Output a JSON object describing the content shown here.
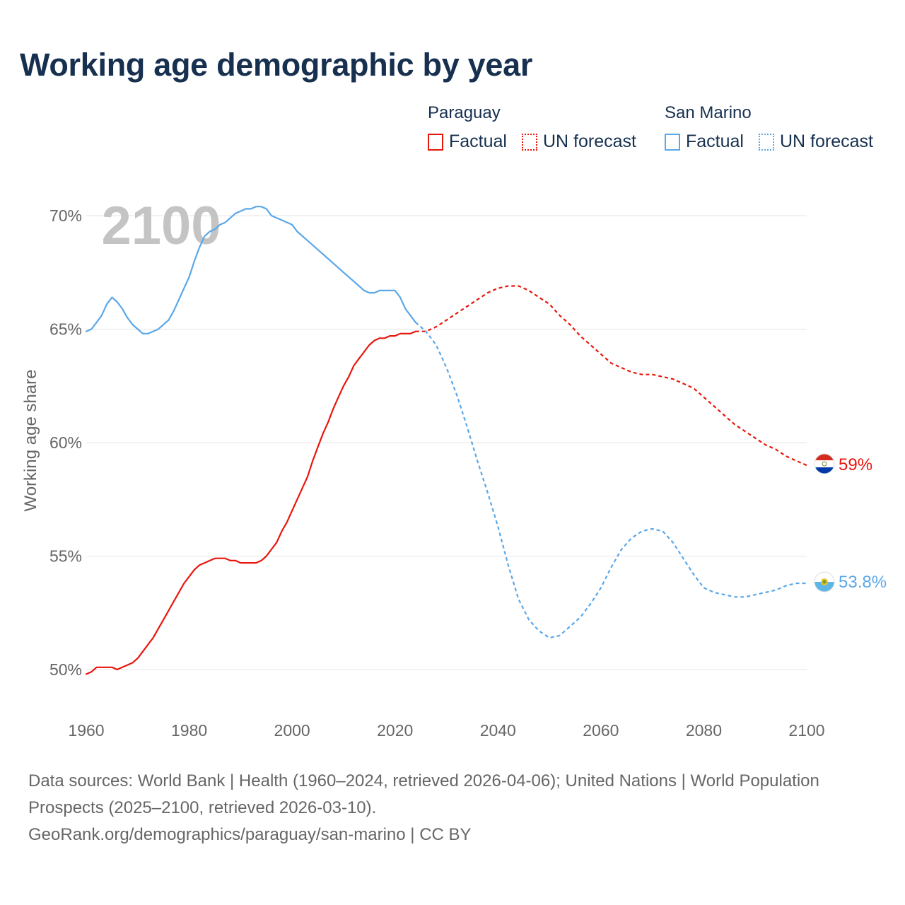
{
  "title": "Working age demographic by year",
  "legend": {
    "groups": [
      {
        "country": "Paraguay",
        "color": "#e8160c",
        "factual_label": "Factual",
        "forecast_label": "UN forecast"
      },
      {
        "country": "San Marino",
        "color": "#5ba7e8",
        "factual_label": "Factual",
        "forecast_label": "UN forecast"
      }
    ]
  },
  "chart_data": {
    "type": "line",
    "title": "Working age demographic by year",
    "year_watermark": "2100",
    "xlabel": "",
    "ylabel": "Working age share",
    "xlim": [
      1960,
      2100
    ],
    "ylim": [
      48.7,
      71.2
    ],
    "x_ticks": [
      1960,
      1980,
      2000,
      2020,
      2040,
      2060,
      2080,
      2100
    ],
    "y_ticks": [
      50,
      55,
      60,
      65,
      70
    ],
    "y_tick_labels": [
      "50%",
      "55%",
      "60%",
      "65%",
      "70%"
    ],
    "grid": "horizontal",
    "factual_range": [
      1960,
      2024
    ],
    "forecast_range": [
      2025,
      2100
    ],
    "series": [
      {
        "name": "Paraguay",
        "color": "#e8160c",
        "end_label": "59%",
        "x": [
          1960,
          1961,
          1962,
          1963,
          1964,
          1965,
          1966,
          1967,
          1968,
          1969,
          1970,
          1971,
          1972,
          1973,
          1974,
          1975,
          1976,
          1977,
          1978,
          1979,
          1980,
          1981,
          1982,
          1983,
          1984,
          1985,
          1986,
          1987,
          1988,
          1989,
          1990,
          1991,
          1992,
          1993,
          1994,
          1995,
          1996,
          1997,
          1998,
          1999,
          2000,
          2001,
          2002,
          2003,
          2004,
          2005,
          2006,
          2007,
          2008,
          2009,
          2010,
          2011,
          2012,
          2013,
          2014,
          2015,
          2016,
          2017,
          2018,
          2019,
          2020,
          2021,
          2022,
          2023,
          2024,
          2025,
          2026,
          2028,
          2030,
          2032,
          2034,
          2036,
          2038,
          2040,
          2042,
          2044,
          2046,
          2048,
          2050,
          2052,
          2054,
          2056,
          2058,
          2060,
          2062,
          2064,
          2066,
          2068,
          2070,
          2072,
          2074,
          2076,
          2078,
          2080,
          2082,
          2084,
          2086,
          2088,
          2090,
          2092,
          2094,
          2096,
          2098,
          2100
        ],
        "values": [
          49.8,
          49.9,
          50.1,
          50.1,
          50.1,
          50.1,
          50.0,
          50.1,
          50.2,
          50.3,
          50.5,
          50.8,
          51.1,
          51.4,
          51.8,
          52.2,
          52.6,
          53.0,
          53.4,
          53.8,
          54.1,
          54.4,
          54.6,
          54.7,
          54.8,
          54.9,
          54.9,
          54.9,
          54.8,
          54.8,
          54.7,
          54.7,
          54.7,
          54.7,
          54.8,
          55.0,
          55.3,
          55.6,
          56.1,
          56.5,
          57.0,
          57.5,
          58.0,
          58.5,
          59.2,
          59.8,
          60.4,
          60.9,
          61.5,
          62.0,
          62.5,
          62.9,
          63.4,
          63.7,
          64.0,
          64.3,
          64.5,
          64.6,
          64.6,
          64.7,
          64.7,
          64.8,
          64.8,
          64.8,
          64.9,
          64.9,
          64.9,
          65.1,
          65.4,
          65.7,
          66.0,
          66.3,
          66.6,
          66.8,
          66.9,
          66.9,
          66.7,
          66.4,
          66.1,
          65.6,
          65.2,
          64.7,
          64.3,
          63.9,
          63.5,
          63.3,
          63.1,
          63.0,
          63.0,
          62.9,
          62.8,
          62.6,
          62.4,
          62.0,
          61.6,
          61.2,
          60.8,
          60.5,
          60.2,
          59.9,
          59.7,
          59.4,
          59.2,
          59.0
        ]
      },
      {
        "name": "San Marino",
        "color": "#5ba7e8",
        "end_label": "53.8%",
        "x": [
          1960,
          1961,
          1962,
          1963,
          1964,
          1965,
          1966,
          1967,
          1968,
          1969,
          1970,
          1971,
          1972,
          1973,
          1974,
          1975,
          1976,
          1977,
          1978,
          1979,
          1980,
          1981,
          1982,
          1983,
          1984,
          1985,
          1986,
          1987,
          1988,
          1989,
          1990,
          1991,
          1992,
          1993,
          1994,
          1995,
          1996,
          1997,
          1998,
          1999,
          2000,
          2001,
          2002,
          2003,
          2004,
          2005,
          2006,
          2007,
          2008,
          2009,
          2010,
          2011,
          2012,
          2013,
          2014,
          2015,
          2016,
          2017,
          2018,
          2019,
          2020,
          2021,
          2022,
          2023,
          2024,
          2025,
          2026,
          2028,
          2030,
          2032,
          2034,
          2036,
          2038,
          2040,
          2042,
          2044,
          2046,
          2048,
          2050,
          2052,
          2054,
          2056,
          2058,
          2060,
          2062,
          2064,
          2066,
          2068,
          2070,
          2072,
          2074,
          2076,
          2078,
          2080,
          2082,
          2084,
          2086,
          2088,
          2090,
          2092,
          2094,
          2096,
          2098,
          2100
        ],
        "values": [
          64.9,
          65.0,
          65.3,
          65.6,
          66.1,
          66.4,
          66.2,
          65.9,
          65.5,
          65.2,
          65.0,
          64.8,
          64.8,
          64.9,
          65.0,
          65.2,
          65.4,
          65.8,
          66.3,
          66.8,
          67.3,
          68.0,
          68.6,
          69.1,
          69.3,
          69.4,
          69.6,
          69.7,
          69.9,
          70.1,
          70.2,
          70.3,
          70.3,
          70.4,
          70.4,
          70.3,
          70.0,
          69.9,
          69.8,
          69.7,
          69.6,
          69.3,
          69.1,
          68.9,
          68.7,
          68.5,
          68.3,
          68.1,
          67.9,
          67.7,
          67.5,
          67.3,
          67.1,
          66.9,
          66.7,
          66.6,
          66.6,
          66.7,
          66.7,
          66.7,
          66.7,
          66.4,
          65.9,
          65.6,
          65.3,
          65.1,
          64.9,
          64.3,
          63.3,
          62.1,
          60.7,
          59.2,
          57.8,
          56.3,
          54.6,
          53.1,
          52.2,
          51.7,
          51.4,
          51.5,
          51.9,
          52.3,
          52.9,
          53.6,
          54.5,
          55.3,
          55.8,
          56.1,
          56.2,
          56.1,
          55.6,
          54.9,
          54.2,
          53.6,
          53.4,
          53.3,
          53.2,
          53.2,
          53.3,
          53.4,
          53.5,
          53.7,
          53.8,
          53.8
        ]
      }
    ]
  },
  "footer": {
    "sources": "Data sources: World Bank | Health (1960–2024, retrieved 2026-04-06); United Nations | World Population Prospects (2025–2100, retrieved 2026-03-10).",
    "credit": "GeoRank.org/demographics/paraguay/san-marino | CC BY"
  }
}
